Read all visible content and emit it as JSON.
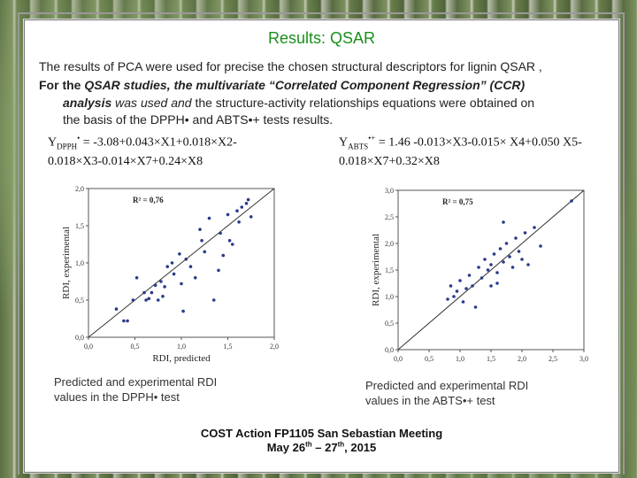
{
  "slide": {
    "title": "Results: QSAR",
    "line1": "The results of PCA were used for precise the chosen structural descriptors for lignin QSAR ,",
    "line2_prefix": "For the ",
    "line2_em": "QSAR studies, the multivariate “Correlated Component Regression” (CCR)",
    "line3_em": "analysis",
    "line3_rest_1": " was used and ",
    "line3_rest_2": " the structure-activity relationships equations were obtained on",
    "line4": "the basis of the DPPH• and ABTS•+ tests results.",
    "eq1_line1": "Y",
    "eq1_sub": "DPPH",
    "eq1_sup": "•",
    "eq1_body": " = -3.08+0.043×X1+0.018×X2-",
    "eq1_line2": "0.018×X3-0.014×X7+0.24×X8",
    "eq2_line1": "Y",
    "eq2_sub": "ABTS",
    "eq2_sup": "•+",
    "eq2_body": " = 1.46 -0.013×X3-0.015× X4+0.050 X5-",
    "eq2_line2": "0.018×X7+0.32×X8",
    "caption_left": "Predicted and experimental RDI values in the DPPH• test",
    "caption_right": "Predicted and experimental RDI values in the ABTS•+ test",
    "footer_line1": "COST Action FP1105 San Sebastian Meeting",
    "footer_line2_a": "May 26",
    "footer_sup1": "th",
    "footer_line2_b": " – 27",
    "footer_sup2": "th",
    "footer_line2_c": ", 2015"
  },
  "colors": {
    "title": "#1a8f1a",
    "points": "#2a3a8a",
    "line": "#333333"
  },
  "chart_data": [
    {
      "type": "scatter",
      "xlabel": "RDI, predicted",
      "ylabel": "RDI, experimental",
      "annotation": "R² = 0,76",
      "xlim": [
        0,
        2.0
      ],
      "ylim": [
        0,
        2.0
      ],
      "xticks": [
        "0,0",
        "0,5",
        "1,0",
        "1,5",
        "2,0"
      ],
      "yticks": [
        "0,0",
        "0,5",
        "1,0",
        "1,5",
        "2,0"
      ],
      "grid": false,
      "fit_line": [
        [
          0,
          0
        ],
        [
          2.0,
          2.0
        ]
      ],
      "points": [
        [
          0.3,
          0.38
        ],
        [
          0.38,
          0.22
        ],
        [
          0.42,
          0.22
        ],
        [
          0.48,
          0.5
        ],
        [
          0.52,
          0.8
        ],
        [
          0.6,
          0.6
        ],
        [
          0.62,
          0.5
        ],
        [
          0.65,
          0.52
        ],
        [
          0.68,
          0.6
        ],
        [
          0.72,
          0.7
        ],
        [
          0.75,
          0.5
        ],
        [
          0.78,
          0.75
        ],
        [
          0.8,
          0.55
        ],
        [
          0.82,
          0.68
        ],
        [
          0.85,
          0.95
        ],
        [
          0.9,
          1.0
        ],
        [
          0.92,
          0.85
        ],
        [
          0.98,
          1.12
        ],
        [
          1.0,
          0.72
        ],
        [
          1.02,
          0.35
        ],
        [
          1.05,
          1.05
        ],
        [
          1.1,
          0.95
        ],
        [
          1.15,
          0.8
        ],
        [
          1.2,
          1.45
        ],
        [
          1.22,
          1.3
        ],
        [
          1.25,
          1.15
        ],
        [
          1.3,
          1.6
        ],
        [
          1.35,
          0.5
        ],
        [
          1.4,
          0.9
        ],
        [
          1.42,
          1.4
        ],
        [
          1.45,
          1.1
        ],
        [
          1.5,
          1.65
        ],
        [
          1.52,
          1.3
        ],
        [
          1.55,
          1.25
        ],
        [
          1.6,
          1.7
        ],
        [
          1.62,
          1.55
        ],
        [
          1.65,
          1.75
        ],
        [
          1.7,
          1.8
        ],
        [
          1.72,
          1.85
        ],
        [
          1.75,
          1.62
        ]
      ]
    },
    {
      "type": "scatter",
      "xlabel": "RDI, predicted",
      "ylabel": "RDI, experimental",
      "annotation": "R² = 0,75",
      "xlim": [
        0,
        3.0
      ],
      "ylim": [
        0,
        3.0
      ],
      "xticks": [
        "0,0",
        "0,5",
        "1,0",
        "1,5",
        "2,0",
        "2,5",
        "3,0"
      ],
      "yticks": [
        "0,0",
        "0,5",
        "1,0",
        "1,5",
        "2,0",
        "2,5",
        "3,0"
      ],
      "grid": false,
      "fit_line": [
        [
          0,
          0
        ],
        [
          3.0,
          3.0
        ]
      ],
      "points": [
        [
          0.8,
          0.95
        ],
        [
          0.85,
          1.2
        ],
        [
          0.9,
          1.0
        ],
        [
          0.95,
          1.1
        ],
        [
          1.0,
          1.3
        ],
        [
          1.05,
          0.9
        ],
        [
          1.1,
          1.15
        ],
        [
          1.15,
          1.4
        ],
        [
          1.2,
          1.2
        ],
        [
          1.25,
          0.8
        ],
        [
          1.3,
          1.55
        ],
        [
          1.35,
          1.35
        ],
        [
          1.4,
          1.7
        ],
        [
          1.45,
          1.5
        ],
        [
          1.5,
          1.6
        ],
        [
          1.55,
          1.8
        ],
        [
          1.6,
          1.45
        ],
        [
          1.65,
          1.9
        ],
        [
          1.7,
          1.65
        ],
        [
          1.75,
          2.0
        ],
        [
          1.8,
          1.75
        ],
        [
          1.85,
          1.55
        ],
        [
          1.9,
          2.1
        ],
        [
          1.95,
          1.85
        ],
        [
          2.0,
          1.7
        ],
        [
          2.05,
          2.2
        ],
        [
          2.1,
          1.6
        ],
        [
          2.2,
          2.3
        ],
        [
          2.3,
          1.95
        ],
        [
          2.8,
          2.8
        ],
        [
          1.5,
          1.2
        ],
        [
          1.6,
          1.25
        ],
        [
          1.7,
          2.4
        ]
      ]
    }
  ]
}
